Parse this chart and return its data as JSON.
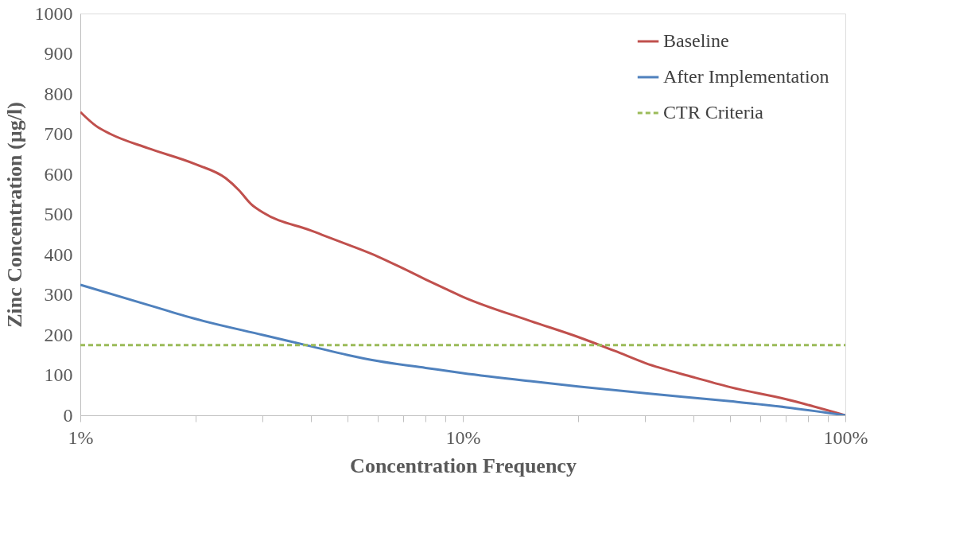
{
  "chart_data": {
    "type": "line",
    "xlabel": "Concentration Frequency",
    "ylabel": "Zinc Concentration (µg/l)",
    "log": "x",
    "xlim": [
      1,
      100
    ],
    "ylim": [
      0,
      1000
    ],
    "xticks": [
      {
        "value": 1,
        "label": "1%"
      },
      {
        "value": 2,
        "label": null
      },
      {
        "value": 3,
        "label": null
      },
      {
        "value": 4,
        "label": null
      },
      {
        "value": 5,
        "label": null
      },
      {
        "value": 6,
        "label": null
      },
      {
        "value": 7,
        "label": null
      },
      {
        "value": 8,
        "label": null
      },
      {
        "value": 9,
        "label": null
      },
      {
        "value": 10,
        "label": "10%"
      },
      {
        "value": 20,
        "label": null
      },
      {
        "value": 30,
        "label": null
      },
      {
        "value": 40,
        "label": null
      },
      {
        "value": 50,
        "label": null
      },
      {
        "value": 60,
        "label": null
      },
      {
        "value": 70,
        "label": null
      },
      {
        "value": 80,
        "label": null
      },
      {
        "value": 90,
        "label": null
      },
      {
        "value": 100,
        "label": "100%"
      }
    ],
    "yticks": [
      0,
      100,
      200,
      300,
      400,
      500,
      600,
      700,
      800,
      900,
      1000
    ],
    "grid": false,
    "legend": "top right",
    "marker": "none",
    "series": [
      {
        "name": "Baseline",
        "color": "#c0504d",
        "line_style": "solid",
        "x": [
          1,
          1.1,
          1.2,
          1.5,
          2,
          2.4,
          2.6,
          2.8,
          3,
          4,
          5,
          6,
          7,
          8,
          9,
          10,
          15,
          20,
          25,
          30,
          40,
          50,
          70,
          100
        ],
        "values": [
          755,
          720,
          700,
          665,
          625,
          590,
          560,
          525,
          505,
          460,
          425,
          395,
          365,
          338,
          315,
          295,
          235,
          195,
          160,
          130,
          95,
          70,
          40,
          0
        ]
      },
      {
        "name": "After Implementation",
        "color": "#4f81bd",
        "line_style": "solid",
        "x": [
          1,
          1.5,
          2,
          3,
          4,
          5,
          6,
          8,
          10,
          15,
          20,
          30,
          50,
          70,
          100
        ],
        "values": [
          325,
          275,
          240,
          200,
          172,
          150,
          135,
          118,
          105,
          85,
          72,
          55,
          35,
          20,
          0
        ]
      },
      {
        "name": "CTR Criteria",
        "color": "#9bbb59",
        "line_style": "dashed",
        "x": [
          1,
          100
        ],
        "values": [
          175,
          175
        ]
      }
    ]
  }
}
